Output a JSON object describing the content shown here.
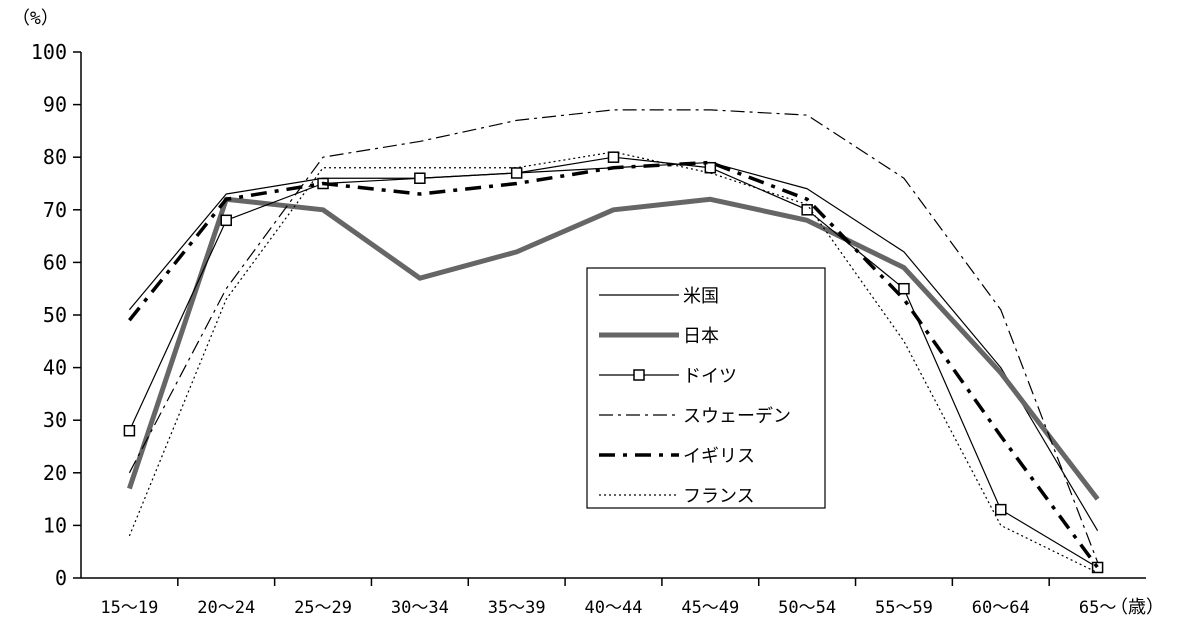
{
  "chart_data": {
    "type": "line",
    "y_unit_label": "（%）",
    "x_unit_label": "（歳）",
    "ylim": [
      0,
      100
    ],
    "yticks": [
      0,
      10,
      20,
      30,
      40,
      50,
      60,
      70,
      80,
      90,
      100
    ],
    "categories": [
      "15～19",
      "20～24",
      "25～29",
      "30～34",
      "35～39",
      "40～44",
      "45～49",
      "50～54",
      "55～59",
      "60～64",
      "65～"
    ],
    "grid": false,
    "legend_position": "center-right",
    "series": [
      {
        "name": "米国",
        "style": "thin-solid",
        "color": "#000000",
        "values": [
          51,
          73,
          76,
          76,
          77,
          78,
          79,
          74,
          62,
          40,
          9
        ]
      },
      {
        "name": "日本",
        "style": "thick-solid",
        "color": "#666666",
        "values": [
          17,
          72,
          70,
          57,
          62,
          70,
          72,
          68,
          59,
          39,
          15
        ]
      },
      {
        "name": "ドイツ",
        "style": "solid-square-markers",
        "color": "#000000",
        "values": [
          28,
          68,
          75,
          76,
          77,
          80,
          78,
          70,
          55,
          13,
          2
        ]
      },
      {
        "name": "スウェーデン",
        "style": "dash-dot",
        "color": "#000000",
        "values": [
          20,
          55,
          80,
          83,
          87,
          89,
          89,
          88,
          76,
          51,
          3
        ]
      },
      {
        "name": "イギリス",
        "style": "thick-dash-dot",
        "color": "#000000",
        "values": [
          49,
          72,
          75,
          73,
          75,
          78,
          79,
          72,
          53,
          27,
          2
        ]
      },
      {
        "name": "フランス",
        "style": "dotted",
        "color": "#000000",
        "values": [
          8,
          53,
          78,
          78,
          78,
          81,
          77,
          71,
          45,
          10,
          1
        ]
      }
    ]
  }
}
